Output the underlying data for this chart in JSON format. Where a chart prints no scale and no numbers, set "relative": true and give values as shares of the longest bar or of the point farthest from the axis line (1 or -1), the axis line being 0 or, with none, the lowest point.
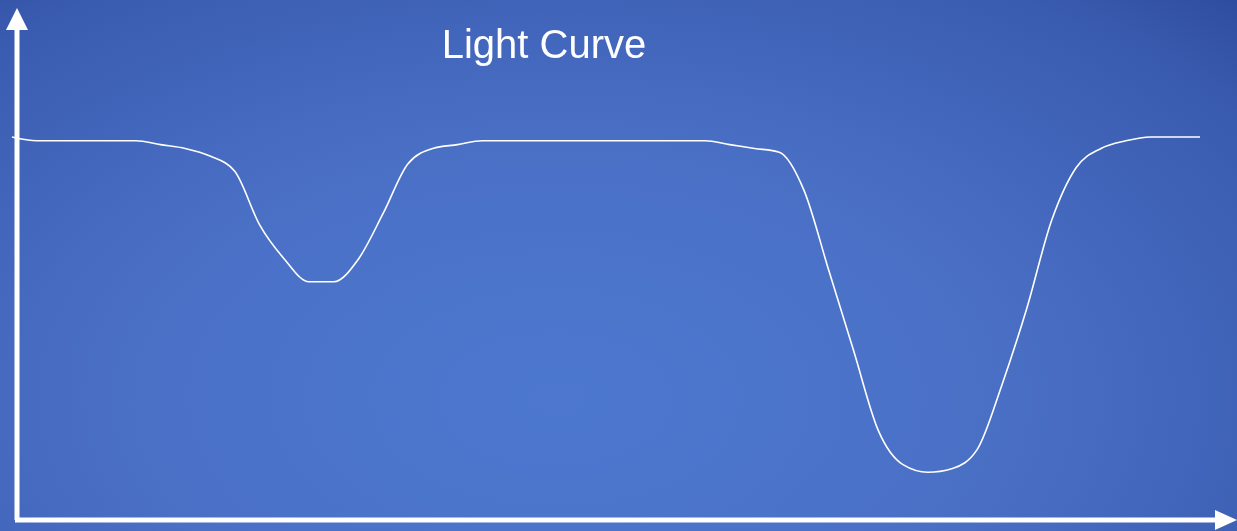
{
  "chart_data": {
    "type": "line",
    "title": "Light Curve",
    "relative": true,
    "categories": [
      null,
      null,
      null,
      null,
      null,
      null,
      null,
      null,
      null,
      null,
      null,
      null,
      null,
      null,
      null,
      null,
      null,
      null,
      null,
      null,
      null,
      null,
      null,
      null,
      null,
      null,
      null,
      null,
      null,
      null,
      null,
      null,
      null,
      null,
      null,
      null,
      null,
      null,
      null,
      null,
      null,
      null,
      null,
      null,
      null,
      null,
      null,
      null,
      null
    ],
    "series": [
      {
        "color": "#ffffff",
        "values": [
          1.0,
          0.99,
          0.99,
          0.99,
          0.99,
          0.99,
          0.98,
          0.97,
          0.95,
          0.91,
          0.77,
          0.68,
          0.62,
          0.62,
          0.68,
          0.8,
          0.93,
          0.97,
          0.98,
          0.99,
          0.99,
          0.99,
          0.99,
          0.99,
          0.99,
          0.99,
          0.99,
          0.99,
          0.99,
          0.98,
          0.97,
          0.96,
          0.86,
          0.65,
          0.44,
          0.23,
          0.14,
          0.12,
          0.13,
          0.18,
          0.35,
          0.55,
          0.78,
          0.92,
          0.97,
          0.99,
          1.0,
          1.0,
          1.0
        ]
      }
    ]
  }
}
